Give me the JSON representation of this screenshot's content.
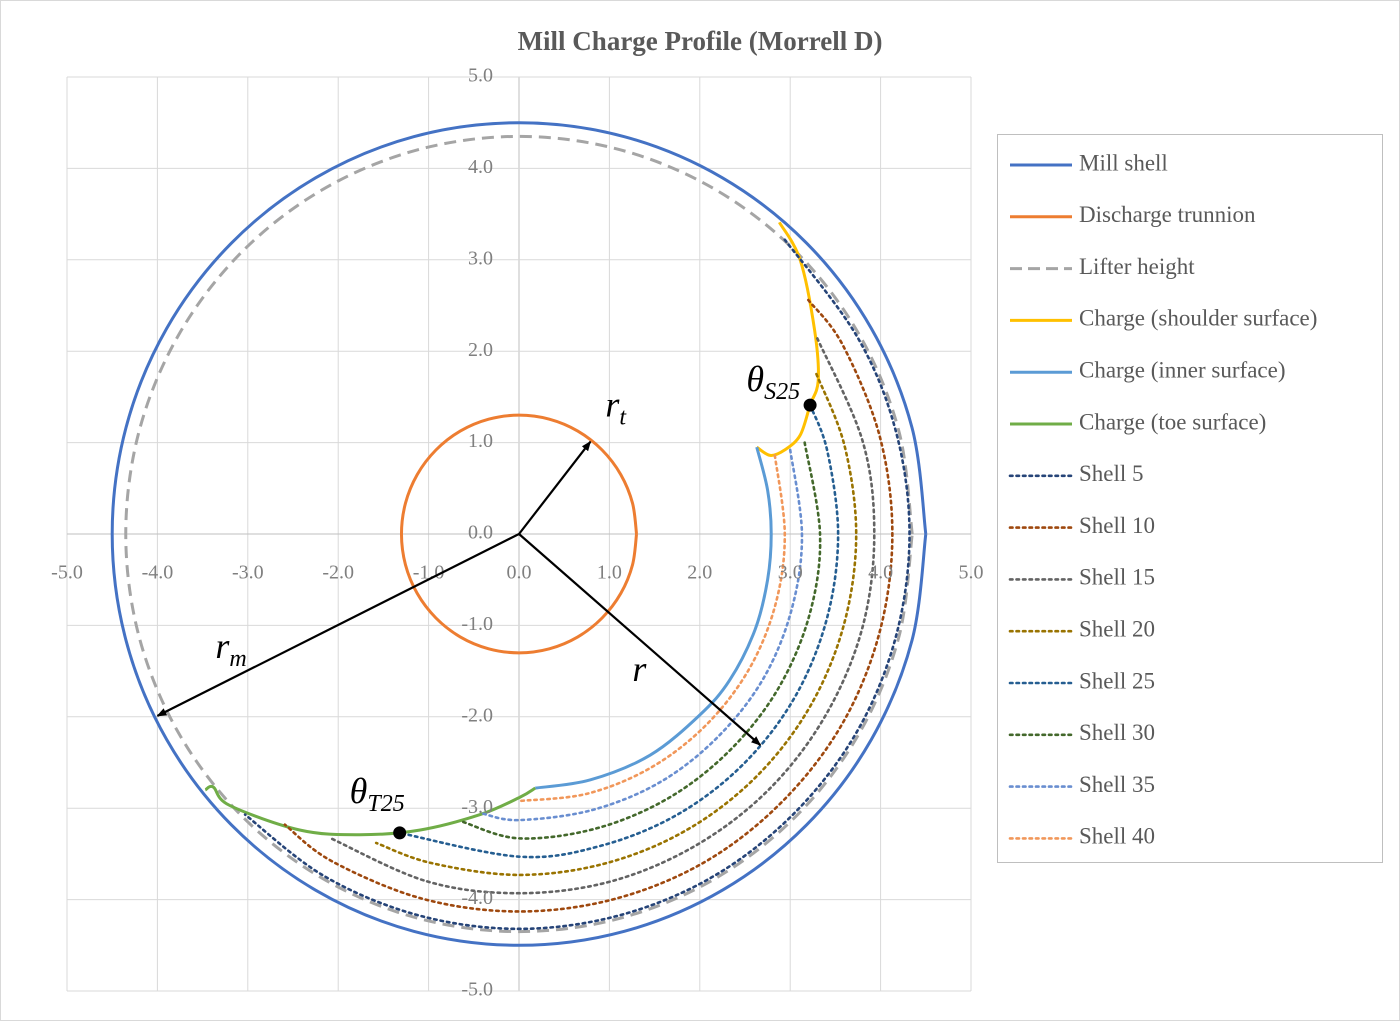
{
  "chart_data": {
    "type": "line",
    "title": "Mill Charge Profile (Morrell D)",
    "xlim": [
      -5,
      5
    ],
    "ylim": [
      -5,
      5
    ],
    "xticks": [
      {
        "value": -5,
        "label": "-5.0"
      },
      {
        "value": -4,
        "label": "-4.0"
      },
      {
        "value": -3,
        "label": "-3.0"
      },
      {
        "value": -2,
        "label": "-2.0"
      },
      {
        "value": -1,
        "label": "-1.0"
      },
      {
        "value": 0,
        "label": "0.0"
      },
      {
        "value": 1,
        "label": "1.0"
      },
      {
        "value": 2,
        "label": "2.0"
      },
      {
        "value": 3,
        "label": "3.0"
      },
      {
        "value": 4,
        "label": "4.0"
      },
      {
        "value": 5,
        "label": "5.0"
      }
    ],
    "yticks": [
      {
        "value": -5,
        "label": "-5.0"
      },
      {
        "value": -4,
        "label": "-4.0"
      },
      {
        "value": -3,
        "label": "-3.0"
      },
      {
        "value": -2,
        "label": "-2.0"
      },
      {
        "value": -1,
        "label": "-1.0"
      },
      {
        "value": 0,
        "label": "0.0"
      },
      {
        "value": 1,
        "label": "1.0"
      },
      {
        "value": 2,
        "label": "2.0"
      },
      {
        "value": 3,
        "label": "3.0"
      },
      {
        "value": 4,
        "label": "4.0"
      },
      {
        "value": 5,
        "label": "5.0"
      }
    ],
    "grid": true,
    "legend": "right",
    "series": [
      {
        "name": "Mill shell",
        "color": "#4472c4",
        "style": "solid",
        "x": [
          4.5,
          4.347,
          3.897,
          3.182,
          2.25,
          1.165,
          0,
          -1.165,
          -2.25,
          -3.182,
          -3.897,
          -4.347,
          -4.5,
          -4.347,
          -3.897,
          -3.182,
          -2.25,
          -1.165,
          0,
          1.165,
          2.25,
          3.182,
          3.897,
          4.347,
          4.5
        ],
        "y": [
          0,
          1.165,
          2.25,
          3.182,
          3.897,
          4.347,
          4.5,
          4.347,
          3.897,
          3.182,
          2.25,
          1.165,
          0,
          -1.165,
          -2.25,
          -3.182,
          -3.897,
          -4.347,
          -4.5,
          -4.347,
          -3.897,
          -3.182,
          -2.25,
          -1.165,
          0
        ]
      },
      {
        "name": "Discharge trunnion",
        "color": "#ed7d31",
        "style": "solid",
        "x": [
          1.3,
          1.256,
          1.126,
          0.919,
          0.65,
          0.336,
          0,
          -0.336,
          -0.65,
          -0.919,
          -1.126,
          -1.256,
          -1.3,
          -1.256,
          -1.126,
          -0.919,
          -0.65,
          -0.336,
          0,
          0.336,
          0.65,
          0.919,
          1.126,
          1.256,
          1.3
        ],
        "y": [
          0,
          0.336,
          0.65,
          0.919,
          1.126,
          1.256,
          1.3,
          1.256,
          1.126,
          0.919,
          0.65,
          0.336,
          0,
          -0.336,
          -0.65,
          -0.919,
          -1.126,
          -1.256,
          -1.3,
          -1.256,
          -1.126,
          -0.919,
          -0.65,
          -0.336,
          0
        ]
      },
      {
        "name": "Lifter height",
        "color": "#a5a5a5",
        "style": "dashed",
        "x": [
          4.35,
          4.202,
          3.767,
          3.076,
          2.175,
          1.126,
          0,
          -1.126,
          -2.175,
          -3.076,
          -3.767,
          -4.202,
          -4.35,
          -4.202,
          -3.767,
          -3.076,
          -2.175,
          -1.126,
          0,
          1.126,
          2.175,
          3.076,
          3.767,
          4.202,
          4.35
        ],
        "y": [
          0,
          1.126,
          2.175,
          3.076,
          3.767,
          4.202,
          4.35,
          4.202,
          3.767,
          3.076,
          2.175,
          1.126,
          0,
          -1.126,
          -2.175,
          -3.076,
          -3.767,
          -4.202,
          -4.35,
          -4.202,
          -3.767,
          -3.076,
          -2.175,
          -1.126,
          0
        ]
      },
      {
        "name": "Charge (shoulder surface)",
        "color": "#ffc000",
        "style": "solid",
        "x": [
          2.88,
          3.11,
          3.27,
          3.31,
          3.22,
          3.11,
          2.94,
          2.78,
          2.63
        ],
        "y": [
          3.41,
          3.0,
          2.23,
          1.68,
          1.41,
          1.08,
          0.92,
          0.86,
          0.95
        ]
      },
      {
        "name": "Charge (inner surface)",
        "color": "#5b9bd5",
        "style": "solid",
        "x": [
          2.63,
          2.75,
          2.79,
          2.75,
          2.61,
          2.33,
          2.0,
          1.45,
          0.79,
          0.18
        ],
        "y": [
          0.95,
          0.48,
          0,
          -0.5,
          -1.05,
          -1.6,
          -1.98,
          -2.42,
          -2.69,
          -2.78
        ]
      },
      {
        "name": "Charge (toe surface)",
        "color": "#70ad47",
        "style": "solid",
        "x": [
          0.18,
          0.01,
          -0.43,
          -1.1,
          -1.76,
          -2.42,
          -3.2,
          -3.38,
          -3.47
        ],
        "y": [
          -2.78,
          -2.88,
          -3.07,
          -3.24,
          -3.29,
          -3.24,
          -2.97,
          -2.77,
          -2.8
        ]
      },
      {
        "name": "Shell 5",
        "color": "#264478",
        "style": "dotted",
        "x": [
          2.94,
          3.74,
          4.17,
          4.32,
          4.17,
          3.74,
          3.05,
          2.16,
          1.12,
          0,
          -1.12,
          -2.16,
          -3.03
        ],
        "y": [
          3.22,
          2.16,
          1.12,
          0,
          -1.12,
          -2.16,
          -3.05,
          -3.74,
          -4.17,
          -4.32,
          -4.17,
          -3.74,
          -3.07
        ]
      },
      {
        "name": "Shell 10",
        "color": "#9e480e",
        "style": "dotted",
        "x": [
          3.2,
          3.58,
          3.99,
          4.13,
          3.99,
          3.58,
          2.92,
          2.07,
          1.07,
          0,
          -1.07,
          -2.07,
          -2.59
        ],
        "y": [
          2.56,
          2.07,
          1.07,
          0,
          -1.07,
          -2.07,
          -2.92,
          -3.58,
          -3.99,
          -4.13,
          -3.99,
          -3.58,
          -3.18
        ]
      },
      {
        "name": "Shell 15",
        "color": "#636363",
        "style": "dotted",
        "x": [
          3.3,
          3.8,
          3.93,
          3.8,
          3.4,
          2.78,
          1.97,
          1.02,
          0,
          -1.02,
          -2.08
        ],
        "y": [
          2.14,
          1.02,
          0,
          -1.02,
          -1.97,
          -2.78,
          -3.4,
          -3.8,
          -3.93,
          -3.8,
          -3.33
        ]
      },
      {
        "name": "Shell 20",
        "color": "#997300",
        "style": "dotted",
        "x": [
          3.29,
          3.6,
          3.73,
          3.6,
          3.23,
          2.64,
          1.87,
          0.97,
          0,
          -0.97,
          -1.58
        ],
        "y": [
          1.75,
          0.97,
          0,
          -0.97,
          -1.87,
          -2.64,
          -3.23,
          -3.6,
          -3.73,
          -3.6,
          -3.38
        ]
      },
      {
        "name": "Shell 25",
        "color": "#255e91",
        "style": "dotted",
        "x": [
          3.22,
          3.41,
          3.53,
          3.41,
          3.06,
          2.5,
          1.77,
          0.91,
          0,
          -1.32
        ],
        "y": [
          1.41,
          0.91,
          0,
          -0.91,
          -1.77,
          -2.5,
          -3.06,
          -3.41,
          -3.53,
          -3.27
        ]
      },
      {
        "name": "Shell 30",
        "color": "#43682b",
        "style": "dotted",
        "x": [
          3.16,
          3.33,
          3.22,
          2.88,
          2.35,
          1.67,
          0.86,
          0,
          -0.62
        ],
        "y": [
          1.0,
          0,
          -0.86,
          -1.67,
          -2.35,
          -2.88,
          -3.22,
          -3.33,
          -3.15
        ]
      },
      {
        "name": "Shell 35",
        "color": "#698ed0",
        "style": "dotted",
        "x": [
          3.0,
          3.13,
          3.02,
          2.71,
          2.21,
          1.57,
          0.81,
          0,
          -0.4
        ],
        "y": [
          0.92,
          0,
          -0.81,
          -1.57,
          -2.21,
          -2.71,
          -3.02,
          -3.13,
          -3.06
        ]
      },
      {
        "name": "Shell 40",
        "color": "#f1975a",
        "style": "dotted",
        "x": [
          2.83,
          2.94,
          2.84,
          2.55,
          2.08,
          1.47,
          0.76,
          0.02
        ],
        "y": [
          0.86,
          0,
          -0.76,
          -1.47,
          -2.08,
          -2.55,
          -2.84,
          -2.92
        ]
      }
    ],
    "annotations": [
      {
        "type": "arrow",
        "x": 0.79,
        "y": 1.01,
        "label": "r",
        "subscript": "t"
      },
      {
        "type": "arrow",
        "x": -4.0,
        "y": -1.99,
        "label": "r",
        "subscript": "m"
      },
      {
        "type": "arrow",
        "x": 2.67,
        "y": -2.31,
        "label": "r"
      },
      {
        "type": "point",
        "x": 3.22,
        "y": 1.41,
        "label": "θ",
        "subscript": "S25"
      },
      {
        "type": "point",
        "x": -1.32,
        "y": -3.27,
        "label": "θ",
        "subscript": "T25"
      }
    ]
  }
}
